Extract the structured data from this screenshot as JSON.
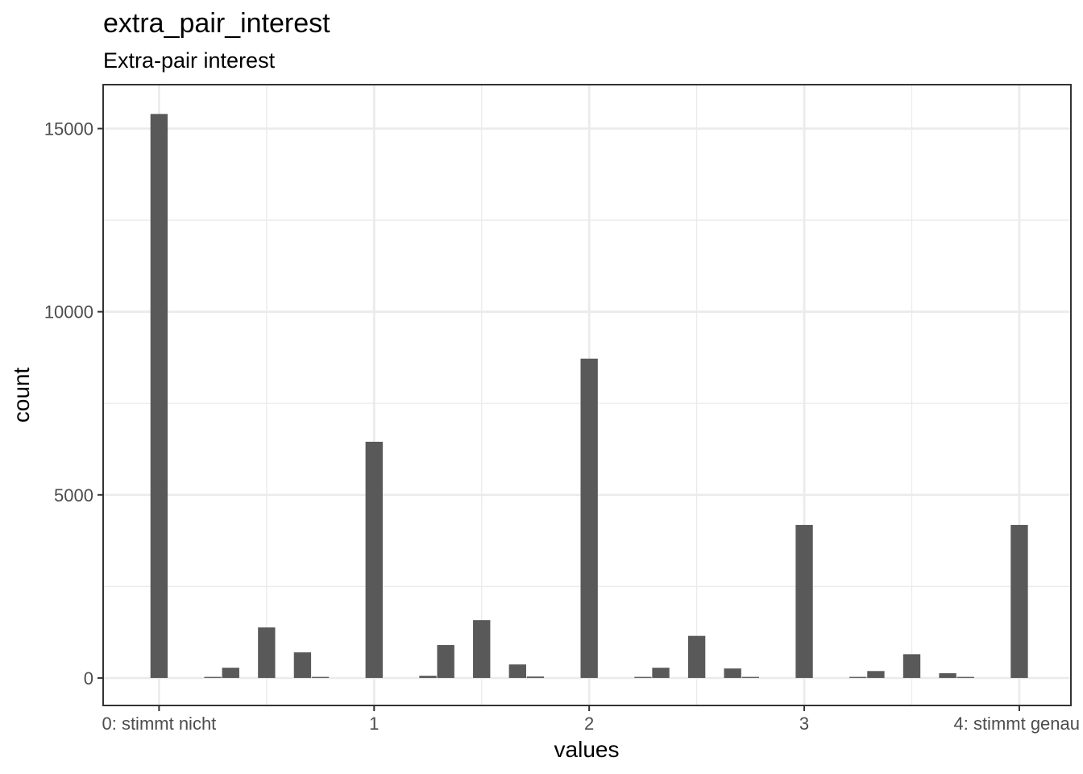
{
  "chart_data": {
    "type": "bar",
    "title": "extra_pair_interest",
    "subtitle": "Extra-pair interest",
    "xlabel": "values",
    "ylabel": "count",
    "xlim": [
      -0.26,
      4.24
    ],
    "ylim": [
      -750,
      16200
    ],
    "x_ticks": [
      {
        "value": 0,
        "label": "0: stimmt nicht"
      },
      {
        "value": 1,
        "label": "1"
      },
      {
        "value": 2,
        "label": "2"
      },
      {
        "value": 3,
        "label": "3"
      },
      {
        "value": 4,
        "label": "4: stimmt genau"
      }
    ],
    "y_ticks": [
      {
        "value": 0,
        "label": "0"
      },
      {
        "value": 5000,
        "label": "5000"
      },
      {
        "value": 10000,
        "label": "10000"
      },
      {
        "value": 15000,
        "label": "15000"
      }
    ],
    "bar_width": 0.08,
    "bars": [
      {
        "x": 0.0,
        "count": 15400
      },
      {
        "x": 0.25,
        "count": 30
      },
      {
        "x": 0.333,
        "count": 280
      },
      {
        "x": 0.5,
        "count": 1380
      },
      {
        "x": 0.667,
        "count": 700
      },
      {
        "x": 0.75,
        "count": 30
      },
      {
        "x": 1.0,
        "count": 6450
      },
      {
        "x": 1.25,
        "count": 60
      },
      {
        "x": 1.333,
        "count": 900
      },
      {
        "x": 1.5,
        "count": 1580
      },
      {
        "x": 1.667,
        "count": 370
      },
      {
        "x": 1.75,
        "count": 40
      },
      {
        "x": 2.0,
        "count": 8720
      },
      {
        "x": 2.25,
        "count": 30
      },
      {
        "x": 2.333,
        "count": 280
      },
      {
        "x": 2.5,
        "count": 1150
      },
      {
        "x": 2.667,
        "count": 260
      },
      {
        "x": 2.75,
        "count": 30
      },
      {
        "x": 3.0,
        "count": 4180
      },
      {
        "x": 3.25,
        "count": 30
      },
      {
        "x": 3.333,
        "count": 190
      },
      {
        "x": 3.5,
        "count": 650
      },
      {
        "x": 3.667,
        "count": 130
      },
      {
        "x": 3.75,
        "count": 30
      },
      {
        "x": 4.0,
        "count": 4180
      }
    ],
    "grid": true,
    "theme": "bw",
    "bar_color": "#595959",
    "grid_color": "#ebebeb",
    "panel_border_color": "#333333",
    "tick_label_color": "#4d4d4d",
    "legend": "none"
  }
}
